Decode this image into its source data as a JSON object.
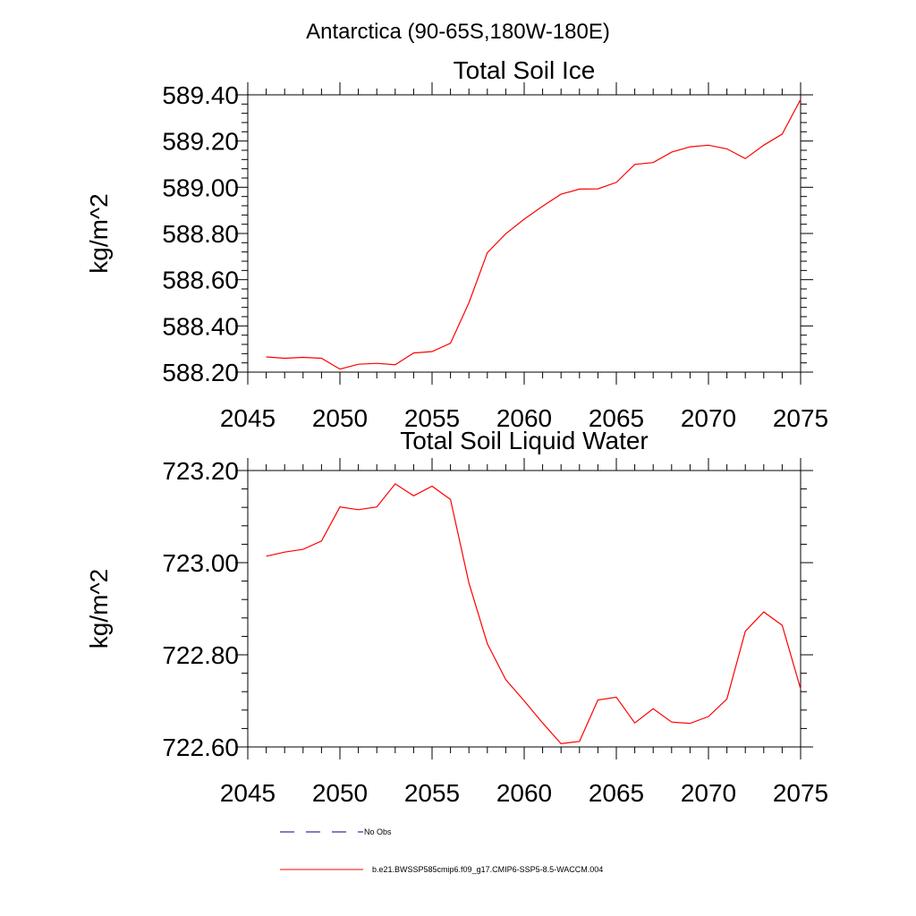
{
  "region_title": "Antarctica (90-65S,180W-180E)",
  "legend": [
    {
      "label": "No Obs",
      "color": "#000080",
      "dash": true
    },
    {
      "label": "b.e21.BWSSP585cmip6.f09_g17.CMIP6-SSP5-8.5-WACCM.004",
      "color": "#ff0000",
      "dash": false
    }
  ],
  "chart_data": [
    {
      "type": "line",
      "title": "Total Soil Ice",
      "ylabel": "kg/m^2",
      "xlabel": "",
      "xlim": [
        2045,
        2075
      ],
      "ylim": [
        588.2,
        589.4
      ],
      "xticks": [
        2045,
        2050,
        2055,
        2060,
        2065,
        2070,
        2075
      ],
      "xtick_labels": [
        "2045",
        "2050",
        "2055",
        "2060",
        "2065",
        "2070",
        "2075"
      ],
      "yticks": [
        588.2,
        588.4,
        588.6,
        588.8,
        589.0,
        589.2,
        589.4
      ],
      "ytick_labels": [
        "588.20",
        "588.40",
        "588.60",
        "588.80",
        "589.00",
        "589.20",
        "589.40"
      ],
      "series": [
        {
          "color": "#ff0000",
          "x": [
            2046,
            2047,
            2048,
            2049,
            2050,
            2051,
            2052,
            2053,
            2054,
            2055,
            2056,
            2057,
            2058,
            2059,
            2060,
            2061,
            2062,
            2063,
            2064,
            2065,
            2066,
            2067,
            2068,
            2069,
            2070,
            2071,
            2072,
            2073,
            2074,
            2075
          ],
          "y": [
            588.266,
            588.26,
            588.264,
            588.26,
            588.213,
            588.234,
            588.238,
            588.232,
            588.283,
            588.289,
            588.325,
            588.5,
            588.717,
            588.799,
            588.862,
            588.918,
            588.97,
            588.992,
            588.993,
            589.021,
            589.099,
            589.107,
            589.152,
            589.175,
            589.182,
            589.166,
            589.124,
            589.182,
            589.23,
            589.38
          ]
        }
      ]
    },
    {
      "type": "line",
      "title": "Total Soil Liquid Water",
      "ylabel": "kg/m^2",
      "xlabel": "",
      "xlim": [
        2045,
        2075
      ],
      "ylim": [
        722.6,
        723.2
      ],
      "xticks": [
        2045,
        2050,
        2055,
        2060,
        2065,
        2070,
        2075
      ],
      "xtick_labels": [
        "2045",
        "2050",
        "2055",
        "2060",
        "2065",
        "2070",
        "2075"
      ],
      "yticks": [
        722.6,
        722.8,
        723.0,
        723.2
      ],
      "ytick_labels": [
        "722.60",
        "722.80",
        "723.00",
        "723.20"
      ],
      "series": [
        {
          "color": "#ff0000",
          "x": [
            2046,
            2047,
            2048,
            2049,
            2050,
            2051,
            2052,
            2053,
            2054,
            2055,
            2056,
            2057,
            2058,
            2059,
            2060,
            2061,
            2062,
            2063,
            2064,
            2065,
            2066,
            2067,
            2068,
            2069,
            2070,
            2071,
            2072,
            2073,
            2074,
            2075
          ],
          "y": [
            723.014,
            723.023,
            723.029,
            723.047,
            723.121,
            723.115,
            723.121,
            723.171,
            723.145,
            723.166,
            723.137,
            722.956,
            722.824,
            722.746,
            722.7,
            722.652,
            722.607,
            722.612,
            722.702,
            722.708,
            722.652,
            722.683,
            722.654,
            722.651,
            722.666,
            722.704,
            722.851,
            722.893,
            722.864,
            722.726
          ]
        }
      ]
    }
  ]
}
